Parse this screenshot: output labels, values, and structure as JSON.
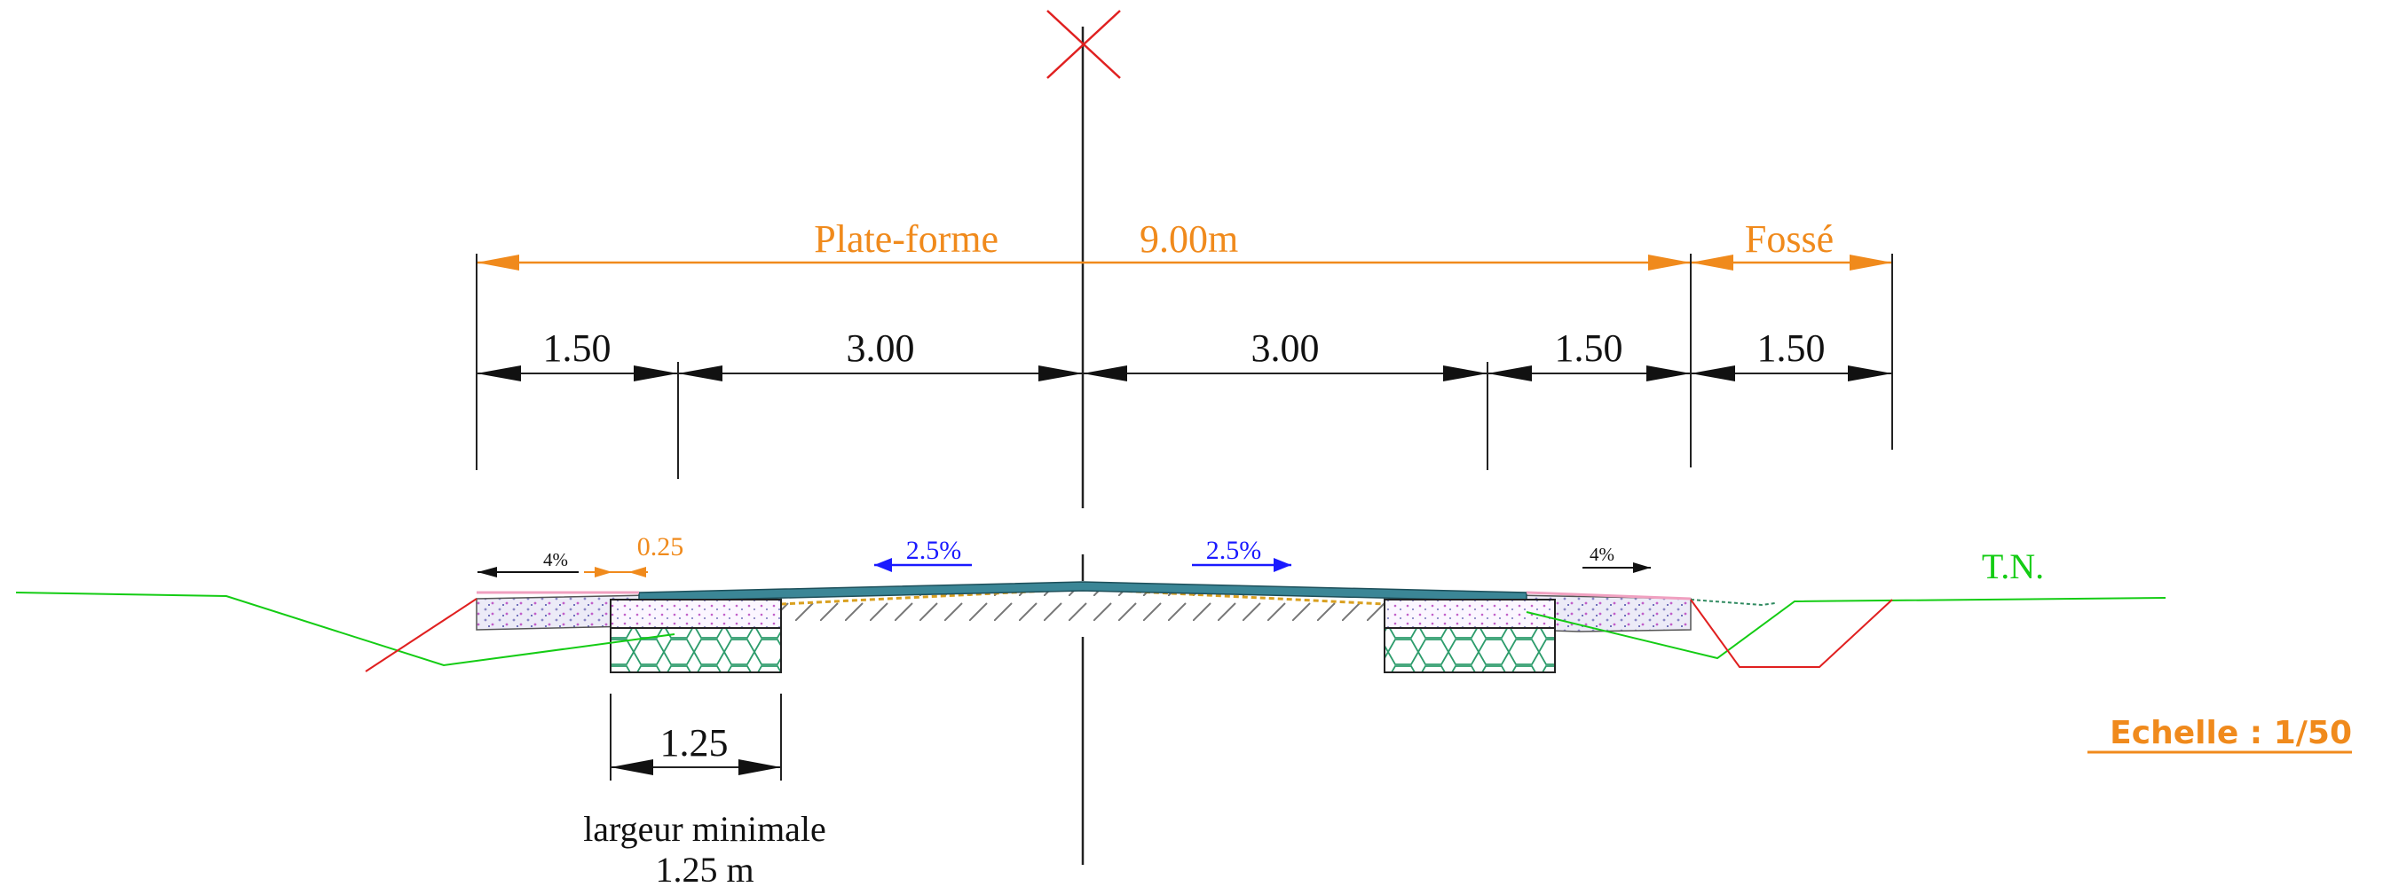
{
  "colors": {
    "dimension_orange": "#f08a1c",
    "slope_blue": "#1a1aff",
    "terrain_green": "#14cc14",
    "cut_red": "#e02020",
    "axis_red": "#e02020",
    "pavement": "#3b8696",
    "shoulder_fill": "#e8e8f4",
    "gabion_green": "#2d9c6c"
  },
  "platform": {
    "label": "Plate-forme",
    "width": "9.00m"
  },
  "ditch": {
    "label": "Fossé"
  },
  "dimensions": {
    "left_shoulder": "1.50",
    "left_lane": "3.00",
    "right_lane": "3.00",
    "right_shoulder": "1.50",
    "ditch_width": "1.50"
  },
  "slopes": {
    "left_shoulder": "4%",
    "left_lane": "2.5%",
    "right_lane": "2.5%",
    "right_shoulder": "4%"
  },
  "curb_offset": "0.25",
  "terrain_label": "T.N.",
  "foundation": {
    "width": "1.25",
    "note_line1": "largeur minimale",
    "note_line2": "1.25 m"
  },
  "scale_label": "Echelle : 1/50",
  "icons": {
    "axis_marker": "cross-icon",
    "dimension_arrow": "arrowhead-icon"
  }
}
